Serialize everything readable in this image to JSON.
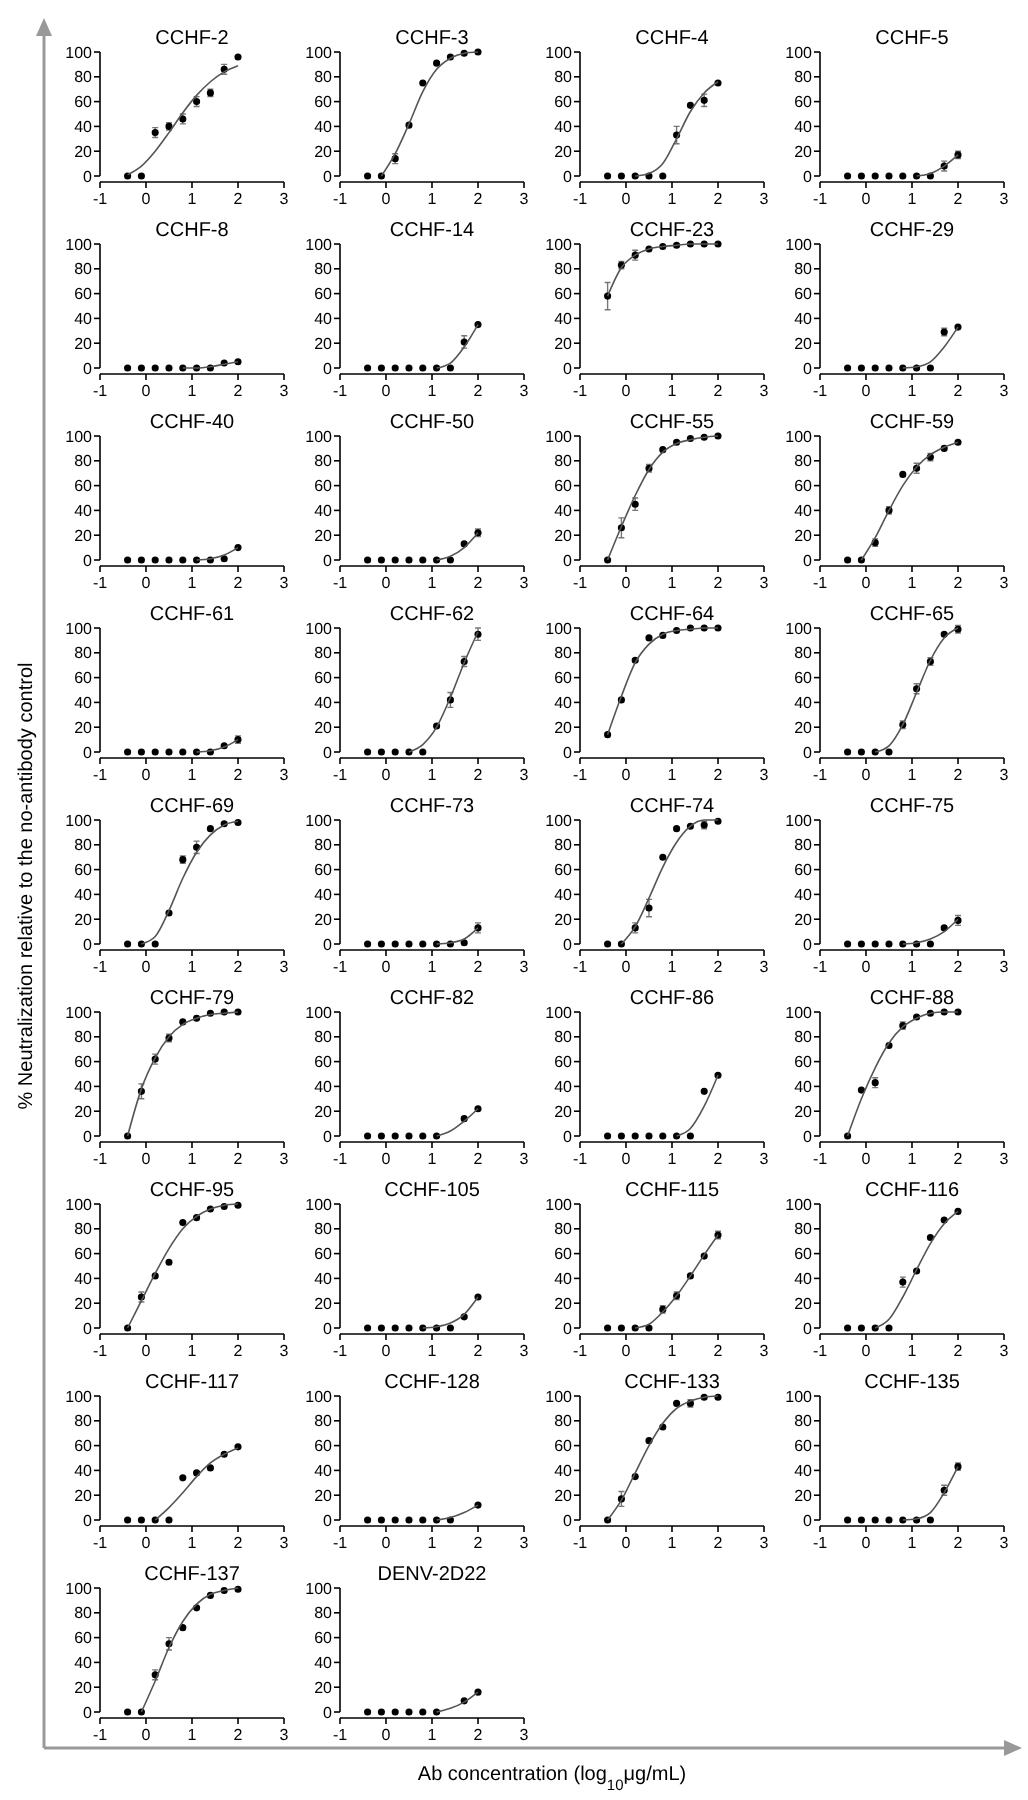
{
  "chart_data": [
    {
      "type": "scatter",
      "title": "CCHF-2",
      "x": [
        -0.4,
        -0.1,
        0.2,
        0.5,
        0.8,
        1.1,
        1.4,
        1.7,
        2.0
      ],
      "xlim": [
        -1,
        3
      ],
      "xticks": [
        -1,
        0,
        1,
        2,
        3
      ],
      "ylim": [
        0,
        100
      ],
      "yticks": [
        0,
        20,
        40,
        60,
        80,
        100
      ],
      "series": [
        {
          "color": "#000000",
          "marker": "circle",
          "values": [
            0,
            0,
            35,
            40,
            46,
            60,
            67,
            86,
            96
          ],
          "errors": [
            null,
            null,
            4,
            3,
            4,
            4,
            3,
            4,
            null
          ]
        },
        {
          "type": "line",
          "color": "#555555",
          "values": [
            1,
            8,
            20,
            35,
            51,
            65,
            76,
            84,
            89
          ]
        }
      ]
    },
    {
      "type": "scatter",
      "title": "CCHF-3",
      "x": [
        -0.4,
        -0.1,
        0.2,
        0.5,
        0.8,
        1.1,
        1.4,
        1.7,
        2.0
      ],
      "xlim": [
        -1,
        3
      ],
      "xticks": [
        -1,
        0,
        1,
        2,
        3
      ],
      "ylim": [
        0,
        100
      ],
      "yticks": [
        0,
        20,
        40,
        60,
        80,
        100
      ],
      "series": [
        {
          "color": "#000000",
          "marker": "circle",
          "values": [
            0,
            0,
            14,
            41,
            75,
            91,
            96,
            99,
            100
          ],
          "errors": [
            null,
            null,
            4,
            null,
            null,
            null,
            null,
            null,
            null
          ]
        },
        {
          "type": "line",
          "color": "#555555",
          "values": [
            null,
            0,
            18,
            42,
            68,
            86,
            95,
            99,
            100
          ]
        }
      ]
    },
    {
      "type": "scatter",
      "title": "CCHF-4",
      "x": [
        -0.4,
        -0.1,
        0.2,
        0.5,
        0.8,
        1.1,
        1.4,
        1.7,
        2.0
      ],
      "xlim": [
        -1,
        3
      ],
      "xticks": [
        -1,
        0,
        1,
        2,
        3
      ],
      "ylim": [
        0,
        100
      ],
      "yticks": [
        0,
        20,
        40,
        60,
        80,
        100
      ],
      "series": [
        {
          "color": "#000000",
          "marker": "circle",
          "values": [
            0,
            0,
            0,
            0,
            0,
            33,
            57,
            61,
            75
          ],
          "errors": [
            null,
            null,
            null,
            null,
            null,
            7,
            null,
            5,
            null
          ]
        },
        {
          "type": "line",
          "color": "#555555",
          "values": [
            null,
            null,
            0,
            2,
            10,
            30,
            52,
            67,
            76
          ]
        }
      ]
    },
    {
      "type": "scatter",
      "title": "CCHF-5",
      "x": [
        -0.4,
        -0.1,
        0.2,
        0.5,
        0.8,
        1.1,
        1.4,
        1.7,
        2.0
      ],
      "xlim": [
        -1,
        3
      ],
      "xticks": [
        -1,
        0,
        1,
        2,
        3
      ],
      "ylim": [
        0,
        100
      ],
      "yticks": [
        0,
        20,
        40,
        60,
        80,
        100
      ],
      "series": [
        {
          "color": "#000000",
          "marker": "circle",
          "values": [
            0,
            0,
            0,
            0,
            0,
            0,
            0,
            8,
            17
          ],
          "errors": [
            null,
            null,
            null,
            null,
            null,
            null,
            null,
            4,
            3
          ]
        },
        {
          "type": "line",
          "color": "#555555",
          "values": [
            null,
            null,
            null,
            null,
            null,
            0,
            2,
            8,
            17
          ]
        }
      ]
    },
    {
      "type": "scatter",
      "title": "CCHF-8",
      "x": [
        -0.4,
        -0.1,
        0.2,
        0.5,
        0.8,
        1.1,
        1.4,
        1.7,
        2.0
      ],
      "xlim": [
        -1,
        3
      ],
      "xticks": [
        -1,
        0,
        1,
        2,
        3
      ],
      "ylim": [
        0,
        100
      ],
      "yticks": [
        0,
        20,
        40,
        60,
        80,
        100
      ],
      "series": [
        {
          "color": "#000000",
          "marker": "circle",
          "values": [
            0,
            0,
            0,
            0,
            0,
            0,
            0,
            4,
            5
          ]
        },
        {
          "type": "line",
          "color": "#555555",
          "values": [
            null,
            null,
            null,
            null,
            0,
            0,
            1,
            3,
            5
          ]
        }
      ]
    },
    {
      "type": "scatter",
      "title": "CCHF-14",
      "x": [
        -0.4,
        -0.1,
        0.2,
        0.5,
        0.8,
        1.1,
        1.4,
        1.7,
        2.0
      ],
      "xlim": [
        -1,
        3
      ],
      "xticks": [
        -1,
        0,
        1,
        2,
        3
      ],
      "ylim": [
        0,
        100
      ],
      "yticks": [
        0,
        20,
        40,
        60,
        80,
        100
      ],
      "series": [
        {
          "color": "#000000",
          "marker": "circle",
          "values": [
            0,
            0,
            0,
            0,
            0,
            0,
            0,
            21,
            35
          ],
          "errors": [
            null,
            null,
            null,
            null,
            null,
            null,
            null,
            5,
            null
          ]
        },
        {
          "type": "line",
          "color": "#555555",
          "values": [
            null,
            null,
            null,
            null,
            null,
            0,
            4,
            17,
            35
          ]
        }
      ]
    },
    {
      "type": "scatter",
      "title": "CCHF-23",
      "x": [
        -0.4,
        -0.1,
        0.2,
        0.5,
        0.8,
        1.1,
        1.4,
        1.7,
        2.0
      ],
      "xlim": [
        -1,
        3
      ],
      "xticks": [
        -1,
        0,
        1,
        2,
        3
      ],
      "ylim": [
        0,
        100
      ],
      "yticks": [
        0,
        20,
        40,
        60,
        80,
        100
      ],
      "series": [
        {
          "color": "#000000",
          "marker": "circle",
          "values": [
            58,
            83,
            91,
            96,
            98,
            99,
            100,
            100,
            100
          ],
          "errors": [
            11,
            3,
            4,
            null,
            null,
            null,
            null,
            null,
            null
          ]
        },
        {
          "type": "line",
          "color": "#555555",
          "values": [
            58,
            81,
            91,
            96,
            98,
            99,
            100,
            100,
            100
          ]
        }
      ]
    },
    {
      "type": "scatter",
      "title": "CCHF-29",
      "x": [
        -0.4,
        -0.1,
        0.2,
        0.5,
        0.8,
        1.1,
        1.4,
        1.7,
        2.0
      ],
      "xlim": [
        -1,
        3
      ],
      "xticks": [
        -1,
        0,
        1,
        2,
        3
      ],
      "ylim": [
        0,
        100
      ],
      "yticks": [
        0,
        20,
        40,
        60,
        80,
        100
      ],
      "series": [
        {
          "color": "#000000",
          "marker": "circle",
          "values": [
            0,
            0,
            0,
            0,
            0,
            0,
            0,
            29,
            33
          ],
          "errors": [
            null,
            null,
            null,
            null,
            null,
            null,
            null,
            3,
            null
          ]
        },
        {
          "type": "line",
          "color": "#555555",
          "values": [
            null,
            null,
            null,
            null,
            0,
            1,
            5,
            17,
            33
          ]
        }
      ]
    },
    {
      "type": "scatter",
      "title": "CCHF-40",
      "x": [
        -0.4,
        -0.1,
        0.2,
        0.5,
        0.8,
        1.1,
        1.4,
        1.7,
        2.0
      ],
      "xlim": [
        -1,
        3
      ],
      "xticks": [
        -1,
        0,
        1,
        2,
        3
      ],
      "ylim": [
        0,
        100
      ],
      "yticks": [
        0,
        20,
        40,
        60,
        80,
        100
      ],
      "series": [
        {
          "color": "#000000",
          "marker": "circle",
          "values": [
            0,
            0,
            0,
            0,
            0,
            0,
            0,
            1,
            10
          ]
        },
        {
          "type": "line",
          "color": "#555555",
          "values": [
            null,
            null,
            null,
            null,
            null,
            0,
            1,
            4,
            10
          ]
        }
      ]
    },
    {
      "type": "scatter",
      "title": "CCHF-50",
      "x": [
        -0.4,
        -0.1,
        0.2,
        0.5,
        0.8,
        1.1,
        1.4,
        1.7,
        2.0
      ],
      "xlim": [
        -1,
        3
      ],
      "xticks": [
        -1,
        0,
        1,
        2,
        3
      ],
      "ylim": [
        0,
        100
      ],
      "yticks": [
        0,
        20,
        40,
        60,
        80,
        100
      ],
      "series": [
        {
          "color": "#000000",
          "marker": "circle",
          "values": [
            0,
            0,
            0,
            0,
            0,
            0,
            0,
            13,
            22
          ],
          "errors": [
            null,
            null,
            null,
            null,
            null,
            null,
            null,
            null,
            3
          ]
        },
        {
          "type": "line",
          "color": "#555555",
          "values": [
            null,
            null,
            null,
            null,
            null,
            0,
            3,
            10,
            22
          ]
        }
      ]
    },
    {
      "type": "scatter",
      "title": "CCHF-55",
      "x": [
        -0.4,
        -0.1,
        0.2,
        0.5,
        0.8,
        1.1,
        1.4,
        1.7,
        2.0
      ],
      "xlim": [
        -1,
        3
      ],
      "xticks": [
        -1,
        0,
        1,
        2,
        3
      ],
      "ylim": [
        0,
        100
      ],
      "yticks": [
        0,
        20,
        40,
        60,
        80,
        100
      ],
      "series": [
        {
          "color": "#000000",
          "marker": "circle",
          "values": [
            0,
            26,
            45,
            74,
            89,
            95,
            98,
            99,
            100
          ],
          "errors": [
            null,
            8,
            5,
            3,
            null,
            null,
            null,
            null,
            null
          ]
        },
        {
          "type": "line",
          "color": "#555555",
          "values": [
            0,
            27,
            52,
            73,
            87,
            94,
            97,
            99,
            100
          ]
        }
      ]
    },
    {
      "type": "scatter",
      "title": "CCHF-59",
      "x": [
        -0.4,
        -0.1,
        0.2,
        0.5,
        0.8,
        1.1,
        1.4,
        1.7,
        2.0
      ],
      "xlim": [
        -1,
        3
      ],
      "xticks": [
        -1,
        0,
        1,
        2,
        3
      ],
      "ylim": [
        0,
        100
      ],
      "yticks": [
        0,
        20,
        40,
        60,
        80,
        100
      ],
      "series": [
        {
          "color": "#000000",
          "marker": "circle",
          "values": [
            0,
            0,
            14,
            40,
            69,
            74,
            83,
            90,
            95
          ],
          "errors": [
            null,
            null,
            3,
            3,
            null,
            4,
            3,
            null,
            null
          ]
        },
        {
          "type": "line",
          "color": "#555555",
          "values": [
            null,
            0,
            18,
            40,
            60,
            75,
            85,
            91,
            95
          ]
        }
      ]
    },
    {
      "type": "scatter",
      "title": "CCHF-61",
      "x": [
        -0.4,
        -0.1,
        0.2,
        0.5,
        0.8,
        1.1,
        1.4,
        1.7,
        2.0
      ],
      "xlim": [
        -1,
        3
      ],
      "xticks": [
        -1,
        0,
        1,
        2,
        3
      ],
      "ylim": [
        0,
        100
      ],
      "yticks": [
        0,
        20,
        40,
        60,
        80,
        100
      ],
      "series": [
        {
          "color": "#000000",
          "marker": "circle",
          "values": [
            0,
            0,
            0,
            0,
            0,
            0,
            0,
            5,
            10
          ],
          "errors": [
            null,
            null,
            null,
            null,
            null,
            null,
            null,
            null,
            3
          ]
        },
        {
          "type": "line",
          "color": "#555555",
          "values": [
            null,
            null,
            null,
            null,
            null,
            0,
            1,
            4,
            10
          ]
        }
      ]
    },
    {
      "type": "scatter",
      "title": "CCHF-62",
      "x": [
        -0.4,
        -0.1,
        0.2,
        0.5,
        0.8,
        1.1,
        1.4,
        1.7,
        2.0
      ],
      "xlim": [
        -1,
        3
      ],
      "xticks": [
        -1,
        0,
        1,
        2,
        3
      ],
      "ylim": [
        0,
        100
      ],
      "yticks": [
        0,
        20,
        40,
        60,
        80,
        100
      ],
      "series": [
        {
          "color": "#000000",
          "marker": "circle",
          "values": [
            0,
            0,
            0,
            0,
            0,
            21,
            42,
            73,
            95
          ],
          "errors": [
            null,
            null,
            null,
            null,
            null,
            null,
            6,
            4,
            5
          ]
        },
        {
          "type": "line",
          "color": "#555555",
          "values": [
            null,
            null,
            null,
            0,
            6,
            20,
            44,
            72,
            97
          ]
        }
      ]
    },
    {
      "type": "scatter",
      "title": "CCHF-64",
      "x": [
        -0.4,
        -0.1,
        0.2,
        0.5,
        0.8,
        1.1,
        1.4,
        1.7,
        2.0
      ],
      "xlim": [
        -1,
        3
      ],
      "xticks": [
        -1,
        0,
        1,
        2,
        3
      ],
      "ylim": [
        0,
        100
      ],
      "yticks": [
        0,
        20,
        40,
        60,
        80,
        100
      ],
      "series": [
        {
          "color": "#000000",
          "marker": "circle",
          "values": [
            14,
            42,
            74,
            92,
            94,
            98,
            100,
            100,
            100
          ]
        },
        {
          "type": "line",
          "color": "#555555",
          "values": [
            14,
            45,
            72,
            87,
            95,
            98,
            99,
            100,
            100
          ]
        }
      ]
    },
    {
      "type": "scatter",
      "title": "CCHF-65",
      "x": [
        -0.4,
        -0.1,
        0.2,
        0.5,
        0.8,
        1.1,
        1.4,
        1.7,
        2.0
      ],
      "xlim": [
        -1,
        3
      ],
      "xticks": [
        -1,
        0,
        1,
        2,
        3
      ],
      "ylim": [
        0,
        100
      ],
      "yticks": [
        0,
        20,
        40,
        60,
        80,
        100
      ],
      "series": [
        {
          "color": "#000000",
          "marker": "circle",
          "values": [
            0,
            0,
            0,
            0,
            22,
            51,
            73,
            95,
            99
          ],
          "errors": [
            null,
            null,
            null,
            null,
            3,
            4,
            3,
            null,
            3
          ]
        },
        {
          "type": "line",
          "color": "#555555",
          "values": [
            null,
            null,
            0,
            5,
            22,
            48,
            74,
            92,
            100
          ]
        }
      ]
    },
    {
      "type": "scatter",
      "title": "CCHF-69",
      "ylabel": "% Neutralization relative to the no-antibody control",
      "x": [
        -0.4,
        -0.1,
        0.2,
        0.5,
        0.8,
        1.1,
        1.4,
        1.7,
        2.0
      ],
      "xlim": [
        -1,
        3
      ],
      "xticks": [
        -1,
        0,
        1,
        2,
        3
      ],
      "ylim": [
        0,
        100
      ],
      "yticks": [
        0,
        20,
        40,
        60,
        80,
        100
      ],
      "series": [
        {
          "color": "#000000",
          "marker": "circle",
          "values": [
            0,
            0,
            0,
            25,
            68,
            78,
            93,
            97,
            98
          ],
          "errors": [
            null,
            null,
            null,
            null,
            3,
            5,
            null,
            null,
            null
          ]
        },
        {
          "type": "line",
          "color": "#555555",
          "values": [
            null,
            0,
            6,
            27,
            53,
            74,
            88,
            96,
            99
          ]
        }
      ]
    },
    {
      "type": "scatter",
      "title": "CCHF-73",
      "x": [
        -0.4,
        -0.1,
        0.2,
        0.5,
        0.8,
        1.1,
        1.4,
        1.7,
        2.0
      ],
      "xlim": [
        -1,
        3
      ],
      "xticks": [
        -1,
        0,
        1,
        2,
        3
      ],
      "ylim": [
        0,
        100
      ],
      "yticks": [
        0,
        20,
        40,
        60,
        80,
        100
      ],
      "series": [
        {
          "color": "#000000",
          "marker": "circle",
          "values": [
            0,
            0,
            0,
            0,
            0,
            0,
            0,
            1,
            13
          ],
          "errors": [
            null,
            null,
            null,
            null,
            null,
            null,
            null,
            null,
            4
          ]
        },
        {
          "type": "line",
          "color": "#555555",
          "values": [
            null,
            null,
            null,
            null,
            null,
            0,
            1,
            4,
            13
          ]
        }
      ]
    },
    {
      "type": "scatter",
      "title": "CCHF-74",
      "x": [
        -0.4,
        -0.1,
        0.2,
        0.5,
        0.8,
        1.1,
        1.4,
        1.7,
        2.0
      ],
      "xlim": [
        -1,
        3
      ],
      "xticks": [
        -1,
        0,
        1,
        2,
        3
      ],
      "ylim": [
        0,
        100
      ],
      "yticks": [
        0,
        20,
        40,
        60,
        80,
        100
      ],
      "series": [
        {
          "color": "#000000",
          "marker": "circle",
          "values": [
            0,
            0,
            13,
            29,
            70,
            93,
            95,
            96,
            99
          ],
          "errors": [
            null,
            null,
            4,
            7,
            null,
            null,
            null,
            3,
            null
          ]
        },
        {
          "type": "line",
          "color": "#555555",
          "values": [
            null,
            0,
            14,
            37,
            62,
            82,
            95,
            100,
            100
          ]
        }
      ]
    },
    {
      "type": "scatter",
      "title": "CCHF-75",
      "x": [
        -0.4,
        -0.1,
        0.2,
        0.5,
        0.8,
        1.1,
        1.4,
        1.7,
        2.0
      ],
      "xlim": [
        -1,
        3
      ],
      "xticks": [
        -1,
        0,
        1,
        2,
        3
      ],
      "ylim": [
        0,
        100
      ],
      "yticks": [
        0,
        20,
        40,
        60,
        80,
        100
      ],
      "series": [
        {
          "color": "#000000",
          "marker": "circle",
          "values": [
            0,
            0,
            0,
            0,
            0,
            0,
            0,
            13,
            19
          ],
          "errors": [
            null,
            null,
            null,
            null,
            null,
            null,
            null,
            null,
            4
          ]
        },
        {
          "type": "line",
          "color": "#555555",
          "values": [
            null,
            null,
            null,
            null,
            0,
            1,
            4,
            10,
            20
          ]
        }
      ]
    },
    {
      "type": "scatter",
      "title": "CCHF-79",
      "x": [
        -0.4,
        -0.1,
        0.2,
        0.5,
        0.8,
        1.1,
        1.4,
        1.7,
        2.0
      ],
      "xlim": [
        -1,
        3
      ],
      "xticks": [
        -1,
        0,
        1,
        2,
        3
      ],
      "ylim": [
        0,
        100
      ],
      "yticks": [
        0,
        20,
        40,
        60,
        80,
        100
      ],
      "series": [
        {
          "color": "#000000",
          "marker": "circle",
          "values": [
            0,
            36,
            62,
            79,
            92,
            95,
            99,
            100,
            100
          ],
          "errors": [
            null,
            6,
            4,
            3,
            null,
            null,
            null,
            null,
            null
          ]
        },
        {
          "type": "line",
          "color": "#555555",
          "values": [
            0,
            38,
            63,
            80,
            90,
            95,
            98,
            99,
            100
          ]
        }
      ]
    },
    {
      "type": "scatter",
      "title": "CCHF-82",
      "x": [
        -0.4,
        -0.1,
        0.2,
        0.5,
        0.8,
        1.1,
        1.4,
        1.7,
        2.0
      ],
      "xlim": [
        -1,
        3
      ],
      "xticks": [
        -1,
        0,
        1,
        2,
        3
      ],
      "ylim": [
        0,
        100
      ],
      "yticks": [
        0,
        20,
        40,
        60,
        80,
        100
      ],
      "series": [
        {
          "color": "#000000",
          "marker": "circle",
          "values": [
            0,
            0,
            0,
            0,
            0,
            0,
            null,
            14,
            22
          ]
        },
        {
          "type": "line",
          "color": "#555555",
          "values": [
            null,
            null,
            null,
            null,
            null,
            0,
            4,
            12,
            22
          ]
        }
      ]
    },
    {
      "type": "scatter",
      "title": "CCHF-86",
      "x": [
        -0.4,
        -0.1,
        0.2,
        0.5,
        0.8,
        1.1,
        1.4,
        1.7,
        2.0
      ],
      "xlim": [
        -1,
        3
      ],
      "xticks": [
        -1,
        0,
        1,
        2,
        3
      ],
      "ylim": [
        0,
        100
      ],
      "yticks": [
        0,
        20,
        40,
        60,
        80,
        100
      ],
      "series": [
        {
          "color": "#000000",
          "marker": "circle",
          "values": [
            0,
            0,
            0,
            0,
            0,
            0,
            0,
            36,
            49
          ]
        },
        {
          "type": "line",
          "color": "#555555",
          "values": [
            null,
            null,
            null,
            null,
            null,
            0,
            6,
            24,
            49
          ]
        }
      ]
    },
    {
      "type": "scatter",
      "title": "CCHF-88",
      "x": [
        -0.4,
        -0.1,
        0.2,
        0.5,
        0.8,
        1.1,
        1.4,
        1.7,
        2.0
      ],
      "xlim": [
        -1,
        3
      ],
      "xticks": [
        -1,
        0,
        1,
        2,
        3
      ],
      "ylim": [
        0,
        100
      ],
      "yticks": [
        0,
        20,
        40,
        60,
        80,
        100
      ],
      "series": [
        {
          "color": "#000000",
          "marker": "circle",
          "values": [
            0,
            37,
            43,
            73,
            89,
            96,
            99,
            100,
            100
          ],
          "errors": [
            null,
            null,
            4,
            null,
            3,
            null,
            null,
            null,
            null
          ]
        },
        {
          "type": "line",
          "color": "#555555",
          "values": [
            0,
            30,
            55,
            75,
            88,
            95,
            99,
            100,
            100
          ]
        }
      ]
    },
    {
      "type": "scatter",
      "title": "CCHF-95",
      "x": [
        -0.4,
        -0.1,
        0.2,
        0.5,
        0.8,
        1.1,
        1.4,
        1.7,
        2.0
      ],
      "xlim": [
        -1,
        3
      ],
      "xticks": [
        -1,
        0,
        1,
        2,
        3
      ],
      "ylim": [
        0,
        100
      ],
      "yticks": [
        0,
        20,
        40,
        60,
        80,
        100
      ],
      "series": [
        {
          "color": "#000000",
          "marker": "circle",
          "values": [
            0,
            25,
            42,
            53,
            85,
            89,
            96,
            98,
            99
          ],
          "errors": [
            null,
            4,
            null,
            null,
            null,
            null,
            null,
            null,
            null
          ]
        },
        {
          "type": "line",
          "color": "#555555",
          "values": [
            0,
            22,
            44,
            64,
            80,
            90,
            96,
            99,
            100
          ]
        }
      ]
    },
    {
      "type": "scatter",
      "title": "CCHF-105",
      "x": [
        -0.4,
        -0.1,
        0.2,
        0.5,
        0.8,
        1.1,
        1.4,
        1.7,
        2.0
      ],
      "xlim": [
        -1,
        3
      ],
      "xticks": [
        -1,
        0,
        1,
        2,
        3
      ],
      "ylim": [
        0,
        100
      ],
      "yticks": [
        0,
        20,
        40,
        60,
        80,
        100
      ],
      "series": [
        {
          "color": "#000000",
          "marker": "circle",
          "values": [
            0,
            0,
            0,
            0,
            0,
            0,
            0,
            9,
            25
          ]
        },
        {
          "type": "line",
          "color": "#555555",
          "values": [
            null,
            null,
            null,
            null,
            0,
            1,
            4,
            11,
            25
          ]
        }
      ]
    },
    {
      "type": "scatter",
      "title": "CCHF-115",
      "x": [
        -0.4,
        -0.1,
        0.2,
        0.5,
        0.8,
        1.1,
        1.4,
        1.7,
        2.0
      ],
      "xlim": [
        -1,
        3
      ],
      "xticks": [
        -1,
        0,
        1,
        2,
        3
      ],
      "ylim": [
        0,
        100
      ],
      "yticks": [
        0,
        20,
        40,
        60,
        80,
        100
      ],
      "series": [
        {
          "color": "#000000",
          "marker": "circle",
          "values": [
            0,
            0,
            0,
            0,
            15,
            26,
            42,
            58,
            75
          ],
          "errors": [
            null,
            null,
            null,
            null,
            3,
            3,
            null,
            null,
            3
          ]
        },
        {
          "type": "line",
          "color": "#555555",
          "values": [
            null,
            null,
            0,
            3,
            13,
            26,
            42,
            59,
            75
          ]
        }
      ]
    },
    {
      "type": "scatter",
      "title": "CCHF-116",
      "x": [
        -0.4,
        -0.1,
        0.2,
        0.5,
        0.8,
        1.1,
        1.4,
        1.7,
        2.0
      ],
      "xlim": [
        -1,
        3
      ],
      "xticks": [
        -1,
        0,
        1,
        2,
        3
      ],
      "ylim": [
        0,
        100
      ],
      "yticks": [
        0,
        20,
        40,
        60,
        80,
        100
      ],
      "series": [
        {
          "color": "#000000",
          "marker": "circle",
          "values": [
            0,
            0,
            0,
            0,
            37,
            46,
            73,
            87,
            94
          ],
          "errors": [
            null,
            null,
            null,
            null,
            4,
            null,
            null,
            null,
            null
          ]
        },
        {
          "type": "line",
          "color": "#555555",
          "values": [
            null,
            null,
            0,
            7,
            25,
            47,
            68,
            84,
            94
          ]
        }
      ]
    },
    {
      "type": "scatter",
      "title": "CCHF-117",
      "x": [
        -0.4,
        -0.1,
        0.2,
        0.5,
        0.8,
        1.1,
        1.4,
        1.7,
        2.0
      ],
      "xlim": [
        -1,
        3
      ],
      "xticks": [
        -1,
        0,
        1,
        2,
        3
      ],
      "ylim": [
        0,
        100
      ],
      "yticks": [
        0,
        20,
        40,
        60,
        80,
        100
      ],
      "series": [
        {
          "color": "#000000",
          "marker": "circle",
          "values": [
            0,
            0,
            0,
            0,
            34,
            38,
            42,
            53,
            59
          ]
        },
        {
          "type": "line",
          "color": "#555555",
          "values": [
            null,
            null,
            0,
            10,
            22,
            35,
            46,
            53,
            58
          ]
        }
      ]
    },
    {
      "type": "scatter",
      "title": "CCHF-128",
      "x": [
        -0.4,
        -0.1,
        0.2,
        0.5,
        0.8,
        1.1,
        1.4,
        1.7,
        2.0
      ],
      "xlim": [
        -1,
        3
      ],
      "xticks": [
        -1,
        0,
        1,
        2,
        3
      ],
      "ylim": [
        0,
        100
      ],
      "yticks": [
        0,
        20,
        40,
        60,
        80,
        100
      ],
      "series": [
        {
          "color": "#000000",
          "marker": "circle",
          "values": [
            0,
            0,
            0,
            0,
            0,
            0,
            0,
            null,
            12
          ]
        },
        {
          "type": "line",
          "color": "#555555",
          "values": [
            null,
            null,
            null,
            null,
            null,
            0,
            2,
            6,
            12
          ]
        }
      ]
    },
    {
      "type": "scatter",
      "title": "CCHF-133",
      "x": [
        -0.4,
        -0.1,
        0.2,
        0.5,
        0.8,
        1.1,
        1.4,
        1.7,
        2.0
      ],
      "xlim": [
        -1,
        3
      ],
      "xticks": [
        -1,
        0,
        1,
        2,
        3
      ],
      "ylim": [
        0,
        100
      ],
      "yticks": [
        0,
        20,
        40,
        60,
        80,
        100
      ],
      "series": [
        {
          "color": "#000000",
          "marker": "circle",
          "values": [
            0,
            17,
            35,
            64,
            75,
            94,
            94,
            99,
            99
          ],
          "errors": [
            null,
            6,
            null,
            null,
            null,
            null,
            3,
            null,
            null
          ]
        },
        {
          "type": "line",
          "color": "#555555",
          "values": [
            0,
            16,
            38,
            60,
            78,
            90,
            96,
            99,
            100
          ]
        }
      ]
    },
    {
      "type": "scatter",
      "title": "CCHF-135",
      "x": [
        -0.4,
        -0.1,
        0.2,
        0.5,
        0.8,
        1.1,
        1.4,
        1.7,
        2.0
      ],
      "xlim": [
        -1,
        3
      ],
      "xticks": [
        -1,
        0,
        1,
        2,
        3
      ],
      "ylim": [
        0,
        100
      ],
      "yticks": [
        0,
        20,
        40,
        60,
        80,
        100
      ],
      "series": [
        {
          "color": "#000000",
          "marker": "circle",
          "values": [
            0,
            0,
            0,
            0,
            0,
            0,
            0,
            24,
            43
          ],
          "errors": [
            null,
            null,
            null,
            null,
            null,
            null,
            null,
            4,
            3
          ]
        },
        {
          "type": "line",
          "color": "#555555",
          "values": [
            null,
            null,
            null,
            null,
            0,
            1,
            6,
            22,
            43
          ]
        }
      ]
    },
    {
      "type": "scatter",
      "title": "CCHF-137",
      "x": [
        -0.4,
        -0.1,
        0.2,
        0.5,
        0.8,
        1.1,
        1.4,
        1.7,
        2.0
      ],
      "xlim": [
        -1,
        3
      ],
      "xticks": [
        -1,
        0,
        1,
        2,
        3
      ],
      "ylim": [
        0,
        100
      ],
      "yticks": [
        0,
        20,
        40,
        60,
        80,
        100
      ],
      "series": [
        {
          "color": "#000000",
          "marker": "circle",
          "values": [
            0,
            0,
            30,
            55,
            68,
            84,
            94,
            98,
            99
          ],
          "errors": [
            null,
            null,
            4,
            5,
            null,
            null,
            null,
            null,
            null
          ]
        },
        {
          "type": "line",
          "color": "#555555",
          "values": [
            null,
            0,
            25,
            52,
            73,
            87,
            95,
            98,
            100
          ]
        }
      ]
    },
    {
      "type": "scatter",
      "title": "DENV-2D22",
      "xlabel": "Ab concentration (log$_{10}$μg/mL)",
      "x": [
        -0.4,
        -0.1,
        0.2,
        0.5,
        0.8,
        1.1,
        1.4,
        1.7,
        2.0
      ],
      "xlim": [
        -1,
        3
      ],
      "xticks": [
        -1,
        0,
        1,
        2,
        3
      ],
      "ylim": [
        0,
        100
      ],
      "yticks": [
        0,
        20,
        40,
        60,
        80,
        100
      ],
      "series": [
        {
          "color": "#000000",
          "marker": "circle",
          "values": [
            0,
            0,
            0,
            0,
            0,
            0,
            null,
            9,
            16
          ]
        },
        {
          "type": "line",
          "color": "#555555",
          "values": [
            null,
            null,
            null,
            null,
            null,
            0,
            3,
            8,
            16
          ]
        }
      ]
    }
  ]
}
